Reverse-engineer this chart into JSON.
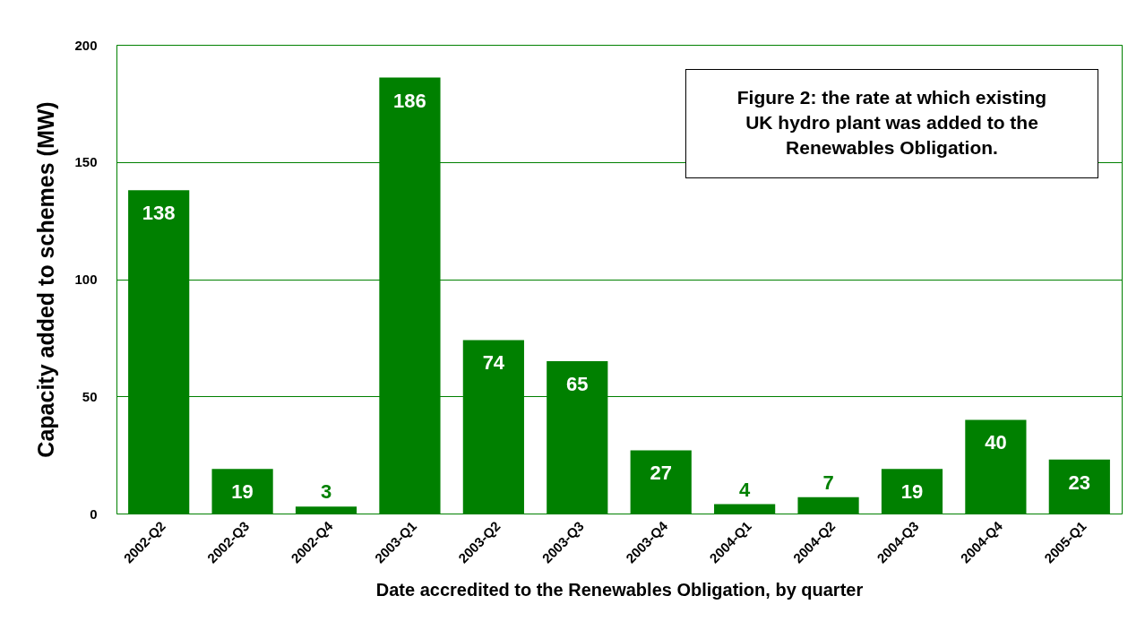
{
  "chart_data": {
    "type": "bar",
    "title": "Figure 2: the rate at which existing UK hydro plant was added to the Renewables Obligation.",
    "xlabel": "Date accredited to the Renewables Obligation, by quarter",
    "ylabel": "Capacity added to schemes (MW)",
    "categories": [
      "2002-Q2",
      "2002-Q3",
      "2002-Q4",
      "2003-Q1",
      "2003-Q2",
      "2003-Q3",
      "2003-Q4",
      "2004-Q1",
      "2004-Q2",
      "2004-Q3",
      "2004-Q4",
      "2005-Q1"
    ],
    "values": [
      138,
      19,
      3,
      186,
      74,
      65,
      27,
      4,
      7,
      19,
      40,
      23
    ],
    "color": "#008000",
    "ylim": [
      0,
      200
    ],
    "yticks": [
      0,
      50,
      100,
      150,
      200
    ],
    "grid": "y",
    "data_labels": true
  }
}
